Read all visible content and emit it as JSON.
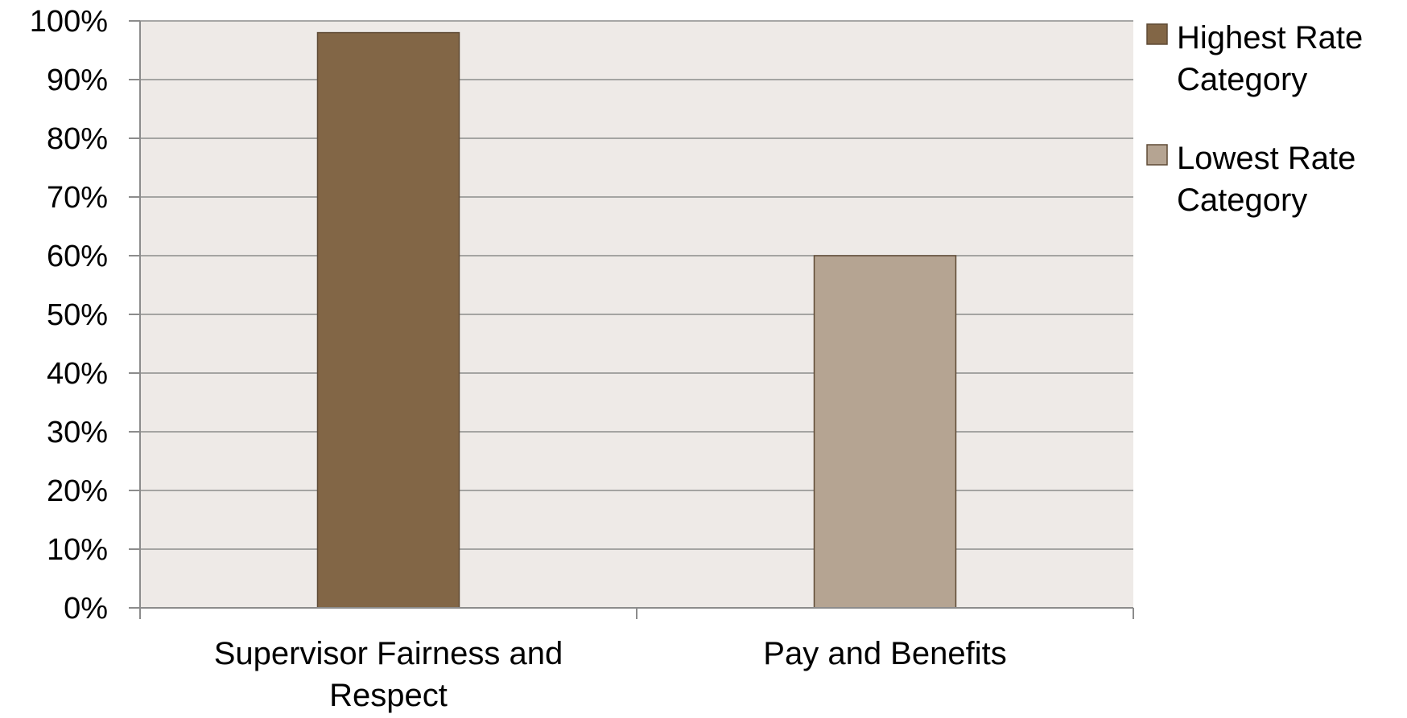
{
  "chart_data": {
    "type": "bar",
    "categories": [
      "Supervisor Fairness and Respect",
      "Pay and Benefits"
    ],
    "series": [
      {
        "name": "Highest Rate Category",
        "values": [
          98,
          null
        ],
        "color": "#826646"
      },
      {
        "name": "Lowest Rate Category",
        "values": [
          null,
          60
        ],
        "color": "#b5a492"
      }
    ],
    "category_lines": [
      [
        "Supervisor Fairness and",
        "Respect"
      ],
      [
        "Pay and Benefits"
      ]
    ],
    "legend_lines": [
      [
        "Highest Rate",
        "Category"
      ],
      [
        "Lowest Rate",
        "Category"
      ]
    ],
    "ylim": [
      0,
      100
    ],
    "yticks": [
      0,
      10,
      20,
      30,
      40,
      50,
      60,
      70,
      80,
      90,
      100
    ],
    "ytick_labels": [
      "0%",
      "10%",
      "20%",
      "30%",
      "40%",
      "50%",
      "60%",
      "70%",
      "80%",
      "90%",
      "100%"
    ],
    "grid": true,
    "legend_position": "right",
    "title": "",
    "xlabel": "",
    "ylabel": "",
    "plot_background": "#eeeae7",
    "grid_color": "#8c8c8c"
  }
}
